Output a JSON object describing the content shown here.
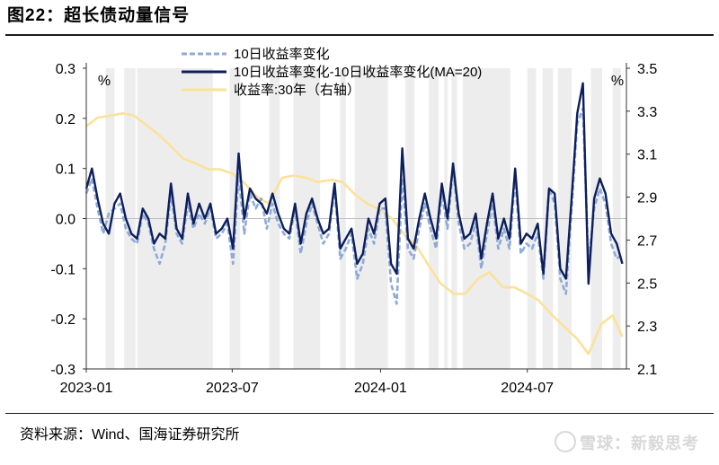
{
  "header": {
    "title": "图22：超长债动量信号"
  },
  "footer": {
    "source": "资料来源：Wind、国海证券研究所",
    "watermark": "雪球：新毅思考"
  },
  "chart_data": {
    "type": "line",
    "left_unit": "%",
    "right_unit": "%",
    "y_left": {
      "lim": [
        -0.3,
        0.3
      ],
      "ticks": [
        -0.3,
        -0.2,
        -0.1,
        0.0,
        0.1,
        0.2,
        0.3
      ],
      "labels": [
        "-0.3",
        "-0.2",
        "-0.1",
        "0.0",
        "0.1",
        "0.2",
        "0.3"
      ]
    },
    "y_right": {
      "lim": [
        2.1,
        3.5
      ],
      "ticks": [
        2.1,
        2.3,
        2.5,
        2.7,
        2.9,
        3.1,
        3.3,
        3.5
      ],
      "labels": [
        "2.1",
        "2.3",
        "2.5",
        "2.7",
        "2.9",
        "3.1",
        "3.3",
        "3.5"
      ]
    },
    "x_range": [
      "2023-01",
      "2024-11"
    ],
    "x_ticks": [
      "2023-01",
      "2023-07",
      "2024-01",
      "2024-07"
    ],
    "shaded_periods": [
      [
        "2023-01-25",
        "2023-02-05"
      ],
      [
        "2023-02-17",
        "2023-03-03"
      ],
      [
        "2023-03-05",
        "2023-06-07"
      ],
      [
        "2023-06-28",
        "2023-07-11"
      ],
      [
        "2023-08-16",
        "2023-08-29"
      ],
      [
        "2023-09-15",
        "2023-10-18"
      ],
      [
        "2023-11-12",
        "2023-11-19"
      ],
      [
        "2023-11-30",
        "2024-01-10"
      ],
      [
        "2024-02-01",
        "2024-02-12"
      ],
      [
        "2024-03-01",
        "2024-03-13"
      ],
      [
        "2024-03-20",
        "2024-03-24"
      ],
      [
        "2024-03-29",
        "2024-04-05"
      ],
      [
        "2024-04-12",
        "2024-06-10"
      ],
      [
        "2024-07-01",
        "2024-07-12"
      ],
      [
        "2024-07-20",
        "2024-08-02"
      ],
      [
        "2024-08-08",
        "2024-08-25"
      ],
      [
        "2024-09-18",
        "2024-10-02"
      ],
      [
        "2024-10-15",
        "2024-10-25"
      ]
    ],
    "series": [
      {
        "name": "10日收益率变化",
        "axis": "left",
        "style": "dashed",
        "color": "#8eaad8",
        "x": [
          "2023-01-01",
          "2023-01-08",
          "2023-01-15",
          "2023-01-22",
          "2023-01-29",
          "2023-02-05",
          "2023-02-12",
          "2023-02-19",
          "2023-02-26",
          "2023-03-05",
          "2023-03-12",
          "2023-03-19",
          "2023-03-26",
          "2023-04-02",
          "2023-04-09",
          "2023-04-16",
          "2023-04-23",
          "2023-04-30",
          "2023-05-07",
          "2023-05-14",
          "2023-05-21",
          "2023-05-28",
          "2023-06-04",
          "2023-06-11",
          "2023-06-18",
          "2023-06-25",
          "2023-07-02",
          "2023-07-09",
          "2023-07-16",
          "2023-07-23",
          "2023-07-30",
          "2023-08-06",
          "2023-08-13",
          "2023-08-20",
          "2023-08-27",
          "2023-09-03",
          "2023-09-10",
          "2023-09-17",
          "2023-09-24",
          "2023-10-01",
          "2023-10-08",
          "2023-10-15",
          "2023-10-22",
          "2023-10-29",
          "2023-11-05",
          "2023-11-12",
          "2023-11-19",
          "2023-11-26",
          "2023-12-03",
          "2023-12-10",
          "2023-12-17",
          "2023-12-24",
          "2023-12-31",
          "2024-01-07",
          "2024-01-14",
          "2024-01-21",
          "2024-01-28",
          "2024-02-04",
          "2024-02-11",
          "2024-02-18",
          "2024-02-25",
          "2024-03-03",
          "2024-03-10",
          "2024-03-17",
          "2024-03-24",
          "2024-03-31",
          "2024-04-07",
          "2024-04-14",
          "2024-04-21",
          "2024-04-28",
          "2024-05-05",
          "2024-05-12",
          "2024-05-19",
          "2024-05-26",
          "2024-06-02",
          "2024-06-09",
          "2024-06-16",
          "2024-06-23",
          "2024-06-30",
          "2024-07-07",
          "2024-07-14",
          "2024-07-21",
          "2024-07-28",
          "2024-08-04",
          "2024-08-11",
          "2024-08-18",
          "2024-08-25",
          "2024-09-01",
          "2024-09-08",
          "2024-09-15",
          "2024-09-22",
          "2024-09-29",
          "2024-10-06",
          "2024-10-13",
          "2024-10-20",
          "2024-10-27"
        ],
        "values": [
          0.05,
          0.08,
          0.02,
          -0.03,
          0.01,
          0.02,
          0.03,
          -0.02,
          -0.04,
          -0.05,
          0.01,
          -0.01,
          -0.06,
          -0.09,
          -0.05,
          0.05,
          -0.03,
          -0.05,
          0.03,
          -0.02,
          0.01,
          -0.01,
          0.02,
          -0.04,
          -0.03,
          -0.01,
          -0.09,
          0.09,
          -0.03,
          0.05,
          0.02,
          0.04,
          -0.02,
          0.03,
          -0.01,
          -0.03,
          -0.04,
          0.02,
          -0.07,
          -0.01,
          0.03,
          -0.01,
          -0.05,
          -0.03,
          0.06,
          -0.08,
          -0.06,
          -0.03,
          -0.12,
          -0.09,
          -0.02,
          -0.05,
          0.02,
          0.02,
          -0.13,
          -0.17,
          0.08,
          -0.06,
          -0.08,
          -0.02,
          0.03,
          -0.02,
          -0.06,
          0.05,
          -0.02,
          0.1,
          -0.01,
          -0.06,
          -0.05,
          -0.01,
          -0.1,
          -0.03,
          0.03,
          -0.06,
          -0.02,
          -0.06,
          0.08,
          -0.07,
          -0.05,
          -0.06,
          -0.03,
          -0.12,
          0.06,
          0.03,
          -0.12,
          -0.15,
          0.02,
          0.19,
          0.22,
          -0.09,
          0.02,
          0.06,
          0.03,
          -0.05,
          -0.08,
          -0.07
        ]
      },
      {
        "name": "10日收益率变化-10日收益率变化(MA=20)",
        "axis": "left",
        "style": "solid",
        "color": "#0d1f5c",
        "x": [
          "2023-01-01",
          "2023-01-08",
          "2023-01-15",
          "2023-01-22",
          "2023-01-29",
          "2023-02-05",
          "2023-02-12",
          "2023-02-19",
          "2023-02-26",
          "2023-03-05",
          "2023-03-12",
          "2023-03-19",
          "2023-03-26",
          "2023-04-02",
          "2023-04-09",
          "2023-04-16",
          "2023-04-23",
          "2023-04-30",
          "2023-05-07",
          "2023-05-14",
          "2023-05-21",
          "2023-05-28",
          "2023-06-04",
          "2023-06-11",
          "2023-06-18",
          "2023-06-25",
          "2023-07-02",
          "2023-07-09",
          "2023-07-16",
          "2023-07-23",
          "2023-07-30",
          "2023-08-06",
          "2023-08-13",
          "2023-08-20",
          "2023-08-27",
          "2023-09-03",
          "2023-09-10",
          "2023-09-17",
          "2023-09-24",
          "2023-10-01",
          "2023-10-08",
          "2023-10-15",
          "2023-10-22",
          "2023-10-29",
          "2023-11-05",
          "2023-11-12",
          "2023-11-19",
          "2023-11-26",
          "2023-12-03",
          "2023-12-10",
          "2023-12-17",
          "2023-12-24",
          "2023-12-31",
          "2024-01-07",
          "2024-01-14",
          "2024-01-21",
          "2024-01-28",
          "2024-02-04",
          "2024-02-11",
          "2024-02-18",
          "2024-02-25",
          "2024-03-03",
          "2024-03-10",
          "2024-03-17",
          "2024-03-24",
          "2024-03-31",
          "2024-04-07",
          "2024-04-14",
          "2024-04-21",
          "2024-04-28",
          "2024-05-05",
          "2024-05-12",
          "2024-05-19",
          "2024-05-26",
          "2024-06-02",
          "2024-06-09",
          "2024-06-16",
          "2024-06-23",
          "2024-06-30",
          "2024-07-07",
          "2024-07-14",
          "2024-07-21",
          "2024-07-28",
          "2024-08-04",
          "2024-08-11",
          "2024-08-18",
          "2024-08-25",
          "2024-09-01",
          "2024-09-08",
          "2024-09-15",
          "2024-09-22",
          "2024-09-29",
          "2024-10-06",
          "2024-10-13",
          "2024-10-20",
          "2024-10-27"
        ],
        "values": [
          0.06,
          0.1,
          0.04,
          -0.01,
          -0.03,
          0.03,
          0.05,
          0.0,
          -0.03,
          -0.04,
          0.02,
          0.0,
          -0.05,
          -0.03,
          -0.04,
          0.07,
          -0.02,
          -0.04,
          0.05,
          -0.01,
          0.03,
          0.0,
          0.03,
          -0.03,
          -0.02,
          0.0,
          -0.06,
          0.13,
          0.0,
          0.06,
          0.04,
          0.03,
          0.01,
          0.05,
          0.01,
          -0.02,
          -0.03,
          0.03,
          -0.05,
          0.01,
          0.04,
          0.0,
          -0.03,
          -0.02,
          0.07,
          -0.06,
          -0.04,
          -0.02,
          -0.09,
          -0.07,
          0.0,
          -0.03,
          0.03,
          0.04,
          -0.09,
          -0.11,
          0.14,
          -0.04,
          -0.06,
          0.0,
          0.05,
          0.0,
          -0.04,
          0.07,
          0.0,
          0.11,
          0.01,
          -0.04,
          -0.03,
          0.01,
          -0.08,
          -0.01,
          0.05,
          -0.04,
          0.0,
          -0.04,
          0.1,
          -0.05,
          -0.03,
          -0.04,
          -0.01,
          -0.11,
          0.06,
          0.05,
          -0.1,
          -0.12,
          0.04,
          0.21,
          0.27,
          -0.13,
          0.04,
          0.08,
          0.05,
          -0.03,
          -0.05,
          -0.09
        ]
      },
      {
        "name": "收益率:30年（右轴）",
        "axis": "right",
        "style": "solid",
        "color": "#fbe29a",
        "x": [
          "2023-01-01",
          "2023-01-15",
          "2023-02-01",
          "2023-02-15",
          "2023-03-01",
          "2023-03-15",
          "2023-04-01",
          "2023-04-15",
          "2023-05-01",
          "2023-05-15",
          "2023-06-01",
          "2023-06-15",
          "2023-07-01",
          "2023-07-15",
          "2023-08-01",
          "2023-08-15",
          "2023-09-01",
          "2023-09-15",
          "2023-10-01",
          "2023-10-15",
          "2023-11-01",
          "2023-11-15",
          "2023-12-01",
          "2023-12-15",
          "2024-01-01",
          "2024-01-15",
          "2024-02-01",
          "2024-02-15",
          "2024-03-01",
          "2024-03-15",
          "2024-04-01",
          "2024-04-15",
          "2024-05-01",
          "2024-05-15",
          "2024-06-01",
          "2024-06-15",
          "2024-07-01",
          "2024-07-15",
          "2024-08-01",
          "2024-08-15",
          "2024-09-01",
          "2024-09-15",
          "2024-10-01",
          "2024-10-15",
          "2024-10-27"
        ],
        "values": [
          3.23,
          3.27,
          3.28,
          3.29,
          3.28,
          3.24,
          3.19,
          3.14,
          3.08,
          3.06,
          3.03,
          3.03,
          3.01,
          2.97,
          2.9,
          2.87,
          2.99,
          3.0,
          2.99,
          2.97,
          2.98,
          2.97,
          2.91,
          2.87,
          2.84,
          2.8,
          2.72,
          2.67,
          2.58,
          2.5,
          2.45,
          2.45,
          2.52,
          2.55,
          2.48,
          2.48,
          2.45,
          2.42,
          2.35,
          2.3,
          2.24,
          2.17,
          2.31,
          2.35,
          2.25
        ]
      }
    ]
  }
}
